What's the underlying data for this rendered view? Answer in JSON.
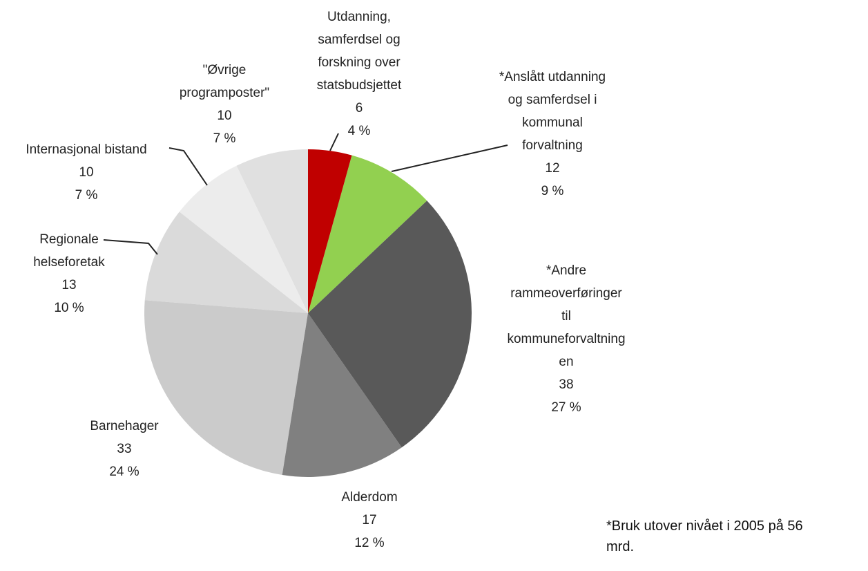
{
  "chart_data": {
    "type": "pie",
    "categories": [
      "Utdanning,\nsamferdsel og\nforskning over\nstatsbudsjettet",
      "*Anslått utdanning\nog samferdsel i\nkommunal\nforvaltning",
      "*Andre\nrammeoverføringer\ntil\nkommuneforvaltning\nen",
      "Alderdom",
      "Barnehager",
      "Regionale\nhelseforetak",
      "Internasjonal bistand",
      "\"Øvrige\nprogramposter\""
    ],
    "values": [
      6,
      12,
      38,
      17,
      33,
      13,
      10,
      10
    ],
    "percentages": [
      4,
      9,
      27,
      12,
      24,
      10,
      7,
      7
    ],
    "percentage_labels": [
      "4 %",
      "9 %",
      "27 %",
      "12 %",
      "24 %",
      "10 %",
      "7 %",
      "7 %"
    ],
    "colors": [
      "#c00000",
      "#92d050",
      "#595959",
      "#808080",
      "#cbcbcb",
      "#dadada",
      "#ececec",
      "#e0e0e0"
    ],
    "footnote": "*Bruk utover nivået i 2005 på 56\nmrd."
  }
}
